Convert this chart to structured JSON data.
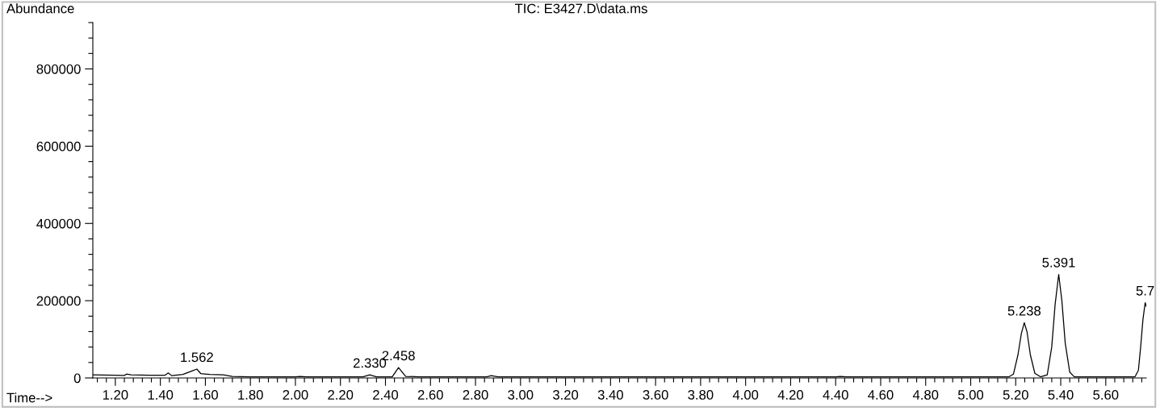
{
  "chart_data": {
    "type": "line",
    "title": "TIC: E3427.D\\data.ms",
    "xlabel": "Time-->",
    "ylabel": "Abundance",
    "series": [
      {
        "color": "#000000",
        "x": [
          1.1,
          1.2,
          1.24,
          1.25,
          1.27,
          1.35,
          1.42,
          1.435,
          1.45,
          1.5,
          1.54,
          1.562,
          1.58,
          1.62,
          1.68,
          1.72,
          1.8,
          2.0,
          2.02,
          2.05,
          2.3,
          2.33,
          2.36,
          2.43,
          2.458,
          2.49,
          2.55,
          2.85,
          2.87,
          2.9,
          4.4,
          4.42,
          4.45,
          5.17,
          5.19,
          5.21,
          5.225,
          5.238,
          5.25,
          5.265,
          5.285,
          5.31,
          5.34,
          5.36,
          5.375,
          5.391,
          5.405,
          5.42,
          5.44,
          5.46,
          5.73,
          5.745,
          5.755,
          5.765,
          5.775,
          5.78
        ],
        "values": [
          8000,
          7000,
          6500,
          10000,
          8000,
          7000,
          7000,
          13000,
          6000,
          9000,
          18000,
          23000,
          11000,
          9000,
          8000,
          4000,
          3000,
          3000,
          4000,
          3000,
          3000,
          8000,
          3000,
          3000,
          27000,
          4000,
          3000,
          3000,
          6000,
          3000,
          3000,
          4000,
          3000,
          3000,
          10000,
          60000,
          115000,
          143000,
          120000,
          60000,
          12000,
          3000,
          8000,
          80000,
          190000,
          268000,
          200000,
          90000,
          15000,
          3000,
          3000,
          20000,
          80000,
          150000,
          195000,
          185000
        ]
      }
    ],
    "xlim": [
      1.1,
      5.78
    ],
    "xticks": [
      {
        "value": 1.2,
        "label": "1.20"
      },
      {
        "value": 1.4,
        "label": "1.40"
      },
      {
        "value": 1.6,
        "label": "1.60"
      },
      {
        "value": 1.8,
        "label": "1.80"
      },
      {
        "value": 2.0,
        "label": "2.00"
      },
      {
        "value": 2.2,
        "label": "2.20"
      },
      {
        "value": 2.4,
        "label": "2.40"
      },
      {
        "value": 2.6,
        "label": "2.60"
      },
      {
        "value": 2.8,
        "label": "2.80"
      },
      {
        "value": 3.0,
        "label": "3.00"
      },
      {
        "value": 3.2,
        "label": "3.20"
      },
      {
        "value": 3.4,
        "label": "3.40"
      },
      {
        "value": 3.6,
        "label": "3.60"
      },
      {
        "value": 3.8,
        "label": "3.80"
      },
      {
        "value": 4.0,
        "label": "4.00"
      },
      {
        "value": 4.2,
        "label": "4.20"
      },
      {
        "value": 4.4,
        "label": "4.40"
      },
      {
        "value": 4.6,
        "label": "4.60"
      },
      {
        "value": 4.8,
        "label": "4.80"
      },
      {
        "value": 5.0,
        "label": "5.00"
      },
      {
        "value": 5.2,
        "label": "5.20"
      },
      {
        "value": 5.4,
        "label": "5.40"
      },
      {
        "value": 5.6,
        "label": "5.60"
      }
    ],
    "ylim": [
      0,
      920000
    ],
    "yticks": [
      0,
      200000,
      400000,
      600000,
      800000
    ],
    "grid": false,
    "legend": false,
    "marker": "none",
    "line_style": "solid",
    "annotations": [
      {
        "text": "1.562",
        "x": 1.562,
        "y": 23000
      },
      {
        "text": "2.330",
        "x": 2.33,
        "y": 8000
      },
      {
        "text": "2.458",
        "x": 2.458,
        "y": 27000
      },
      {
        "text": "5.238",
        "x": 5.238,
        "y": 143000
      },
      {
        "text": "5.391",
        "x": 5.391,
        "y": 268000
      },
      {
        "text": "5.7",
        "x": 5.775,
        "y": 195000
      }
    ]
  }
}
